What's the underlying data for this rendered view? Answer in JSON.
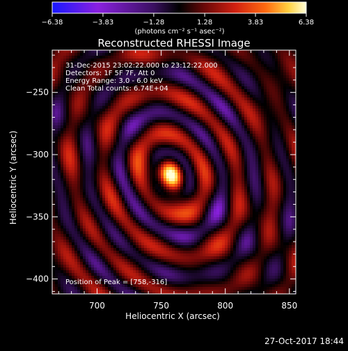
{
  "chart_data": {
    "type": "heatmap",
    "title": "Reconstructed RHESSI Image",
    "xlabel": "Heliocentric X (arcsec)",
    "ylabel": "Heliocentric Y (arcsec)",
    "xlim": [
      665,
      855
    ],
    "ylim": [
      -412,
      -216
    ],
    "x_ticks": [
      {
        "label": "700",
        "value": 700
      },
      {
        "label": "750",
        "value": 750
      },
      {
        "label": "800",
        "value": 800
      },
      {
        "label": "850",
        "value": 850
      }
    ],
    "y_ticks": [
      {
        "label": "−250",
        "value": -250
      },
      {
        "label": "−300",
        "value": -300
      },
      {
        "label": "−350",
        "value": -350
      },
      {
        "label": "−400",
        "value": -400
      }
    ],
    "colorbar": {
      "min": -6.38,
      "max": 6.38,
      "tick_labels": [
        "−6.38",
        "−3.83",
        "−1.28",
        "1.28",
        "3.83",
        "6.38"
      ],
      "tick_values": [
        -6.38,
        -3.83,
        -1.28,
        1.28,
        3.83,
        6.38
      ],
      "unit_label": "(photons cm⁻² s⁻¹ asec⁻²)",
      "colors": [
        "#1818ff",
        "#8a20e0",
        "#3a1060",
        "#000000",
        "#6a0808",
        "#d02010",
        "#ff6a10",
        "#ffd040",
        "#ffffd8"
      ]
    },
    "annotations": [
      "31-Dec-2015 23:02:22.000 to 23:12:22.000",
      "Detectors: 1F 5F 7F, Att 0",
      "Energy Range: 3.0 - 6.0 keV",
      "Clean     Total counts: 6.74E+04"
    ],
    "peak_label": "Position of Peak = [758,-316]",
    "peak": {
      "x": 758,
      "y": -316,
      "value": 6.38
    }
  },
  "footer": {
    "timestamp": "27-Oct-2017 18:44"
  }
}
